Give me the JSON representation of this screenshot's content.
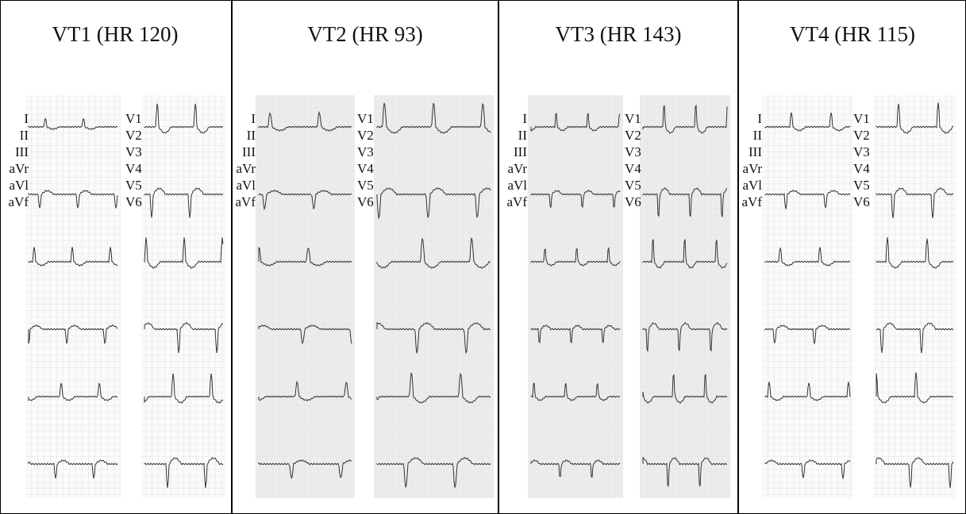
{
  "panels": [
    {
      "title": "VT1 (HR 120)",
      "limb_leads": [
        "I",
        "II",
        "III",
        "aVr",
        "aVl",
        "aVf"
      ],
      "precordial_leads": [
        "V1",
        "V2",
        "V3",
        "V4",
        "V5",
        "V6"
      ]
    },
    {
      "title": "VT2 (HR 93)",
      "limb_leads": [
        "I",
        "II",
        "III",
        "aVr",
        "aVl",
        "aVf"
      ],
      "precordial_leads": [
        "V1",
        "V2",
        "V3",
        "V4",
        "V5",
        "V6"
      ]
    },
    {
      "title": "VT3 (HR 143)",
      "limb_leads": [
        "I",
        "II",
        "III",
        "aVr",
        "aVl",
        "aVf"
      ],
      "precordial_leads": [
        "V1",
        "V2",
        "V3",
        "V4",
        "V5",
        "V6"
      ]
    },
    {
      "title": "VT4 (HR 115)",
      "limb_leads": [
        "I",
        "II",
        "III",
        "aVr",
        "aVl",
        "aVf"
      ],
      "precordial_leads": [
        "V1",
        "V2",
        "V3",
        "V4",
        "V5",
        "V6"
      ]
    }
  ]
}
